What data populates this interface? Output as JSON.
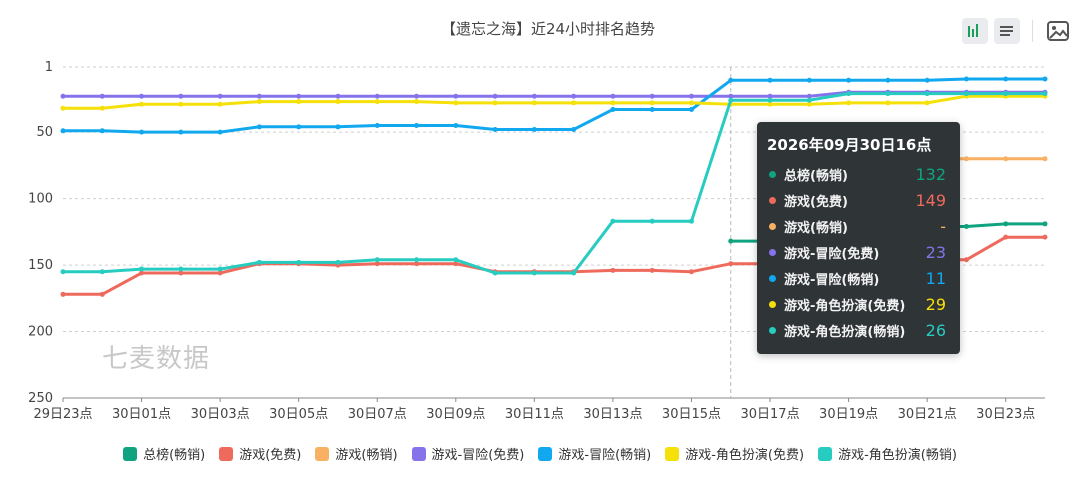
{
  "chart_data": {
    "type": "line",
    "title": "【遗忘之海】近24小时排名趋势",
    "xlabel": "",
    "ylabel": "",
    "y_inverse": true,
    "ylim": [
      1,
      250
    ],
    "y_ticks": [
      1,
      50,
      100,
      150,
      200,
      250
    ],
    "grid": true,
    "legend_position": "bottom",
    "x": [
      "29日23点",
      "30日00点",
      "30日01点",
      "30日02点",
      "30日03点",
      "30日04点",
      "30日05点",
      "30日06点",
      "30日07点",
      "30日08点",
      "30日09点",
      "30日10点",
      "30日11点",
      "30日12点",
      "30日13点",
      "30日14点",
      "30日15点",
      "30日16点",
      "30日17点",
      "30日18点",
      "30日19点",
      "30日20点",
      "30日21点",
      "30日22点",
      "30日23点",
      "31日00点"
    ],
    "x_tick_labels": [
      "29日23点",
      "30日01点",
      "30日03点",
      "30日05点",
      "30日07点",
      "30日09点",
      "30日11点",
      "30日13点",
      "30日15点",
      "30日17点",
      "30日19点",
      "30日21点",
      "30日23点"
    ],
    "series": [
      {
        "name": "总榜(畅销)",
        "color": "#10a37f",
        "values": [
          null,
          null,
          null,
          null,
          null,
          null,
          null,
          null,
          null,
          null,
          null,
          null,
          null,
          null,
          null,
          null,
          null,
          132,
          132,
          132,
          132,
          124,
          121,
          121,
          119,
          119
        ]
      },
      {
        "name": "游戏(免费)",
        "color": "#ee6a5c",
        "values": [
          172,
          172,
          156,
          156,
          156,
          149,
          149,
          150,
          149,
          149,
          149,
          155,
          155,
          155,
          154,
          154,
          155,
          149,
          149,
          149,
          146,
          145,
          146,
          146,
          129,
          129
        ]
      },
      {
        "name": "游戏(畅销)",
        "color": "#f8b062",
        "values": [
          null,
          null,
          null,
          null,
          null,
          null,
          null,
          null,
          null,
          null,
          null,
          null,
          null,
          null,
          null,
          null,
          null,
          null,
          null,
          null,
          null,
          null,
          70,
          70,
          70,
          70
        ]
      },
      {
        "name": "游戏-冒险(免费)",
        "color": "#8473ea",
        "values": [
          23,
          23,
          23,
          23,
          23,
          23,
          23,
          23,
          23,
          23,
          23,
          23,
          23,
          23,
          23,
          23,
          23,
          23,
          23,
          23,
          20,
          20,
          20,
          20,
          20,
          20
        ]
      },
      {
        "name": "游戏-冒险(畅销)",
        "color": "#11a8ef",
        "values": [
          49,
          49,
          50,
          50,
          50,
          46,
          46,
          46,
          45,
          45,
          45,
          48,
          48,
          48,
          33,
          33,
          33,
          11,
          11,
          11,
          11,
          11,
          11,
          10,
          10,
          10
        ]
      },
      {
        "name": "游戏-角色扮演(免费)",
        "color": "#f6e009",
        "values": [
          32,
          32,
          29,
          29,
          29,
          27,
          27,
          27,
          27,
          27,
          28,
          28,
          28,
          28,
          28,
          28,
          28,
          29,
          29,
          29,
          28,
          28,
          28,
          23,
          23,
          23
        ]
      },
      {
        "name": "游戏-角色扮演(畅销)",
        "color": "#26ccc0",
        "values": [
          155,
          155,
          153,
          153,
          153,
          148,
          148,
          148,
          146,
          146,
          146,
          156,
          156,
          156,
          117,
          117,
          117,
          26,
          26,
          26,
          21,
          21,
          21,
          21,
          21,
          21
        ]
      }
    ]
  },
  "toolbar": {
    "icons": [
      "bar-chart-icon",
      "data-view-icon",
      "save-image-icon",
      "restore-icon"
    ]
  },
  "tooltip": {
    "title": "2026年09月30日16点",
    "rows": [
      {
        "name": "总榜(畅销)",
        "value": "132",
        "color": "#10a37f"
      },
      {
        "name": "游戏(免费)",
        "value": "149",
        "color": "#ee6a5c"
      },
      {
        "name": "游戏(畅销)",
        "value": "-",
        "color": "#f8b062"
      },
      {
        "name": "游戏-冒险(免费)",
        "value": "23",
        "color": "#8473ea"
      },
      {
        "name": "游戏-冒险(畅销)",
        "value": "11",
        "color": "#11a8ef"
      },
      {
        "name": "游戏-角色扮演(免费)",
        "value": "29",
        "color": "#f6e009"
      },
      {
        "name": "游戏-角色扮演(畅销)",
        "value": "26",
        "color": "#26ccc0"
      }
    ]
  },
  "watermark": "七麦数据"
}
